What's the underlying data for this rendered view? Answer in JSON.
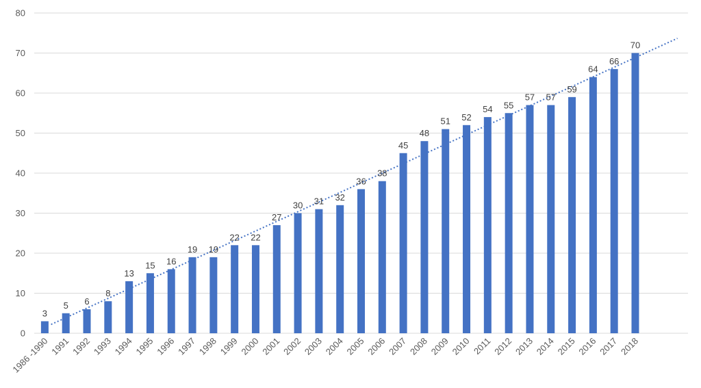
{
  "colors": {
    "bar": "#4472c4",
    "trendline": "#4472c4",
    "gridline": "#d9d9d9",
    "tick_text": "#595959",
    "label_text": "#404040"
  },
  "chart_data": {
    "type": "bar",
    "categories": [
      "1986 -1990",
      "1991",
      "1992",
      "1993",
      "1994",
      "1995",
      "1996",
      "1997",
      "1998",
      "1999",
      "2000",
      "2001",
      "2002",
      "2003",
      "2004",
      "2005",
      "2006",
      "2007",
      "2008",
      "2009",
      "2010",
      "2011",
      "2012",
      "2013",
      "2014",
      "2015",
      "2016",
      "2017",
      "2018"
    ],
    "values": [
      3,
      5,
      6,
      8,
      13,
      15,
      16,
      19,
      19,
      22,
      22,
      27,
      30,
      31,
      32,
      36,
      38,
      45,
      48,
      51,
      52,
      54,
      55,
      57,
      57,
      59,
      64,
      66,
      70
    ],
    "data_labels": true,
    "trendline": "linear, dotted, extended two categories forward",
    "title": "",
    "xlabel": "",
    "ylabel": "",
    "ylim": [
      0,
      80
    ],
    "yticks": [
      0,
      10,
      20,
      30,
      40,
      50,
      60,
      70,
      80
    ],
    "grid": "horizontal",
    "legend": "none"
  }
}
